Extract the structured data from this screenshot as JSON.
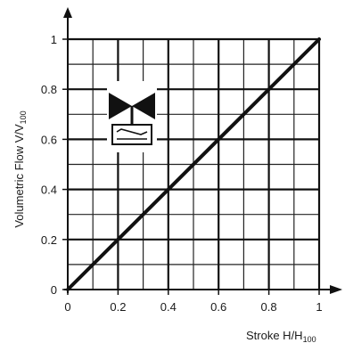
{
  "chart_data": {
    "type": "line",
    "title": "",
    "xlabel": "Stroke H/H",
    "xlabel_sub": "100",
    "ylabel": "Volumetric Flow V/V",
    "ylabel_sub": "100",
    "xlim": [
      0,
      1
    ],
    "ylim": [
      0,
      1
    ],
    "x_ticks": [
      0,
      0.2,
      0.4,
      0.6,
      0.8,
      1
    ],
    "x_tick_labels": [
      "0",
      "0.2",
      "0.4",
      "0.6",
      "0.8",
      "1"
    ],
    "y_ticks": [
      0,
      0.2,
      0.4,
      0.6,
      0.8,
      1
    ],
    "y_tick_labels": [
      "0",
      "0.2",
      "0.4",
      "0.6",
      "0.8",
      "1"
    ],
    "grid": true,
    "minor_grid_step": 0.1,
    "series": [
      {
        "x": [
          0,
          1
        ],
        "y": [
          0,
          1
        ]
      }
    ],
    "annotation_icon": "valve-with-actuator-icon"
  }
}
